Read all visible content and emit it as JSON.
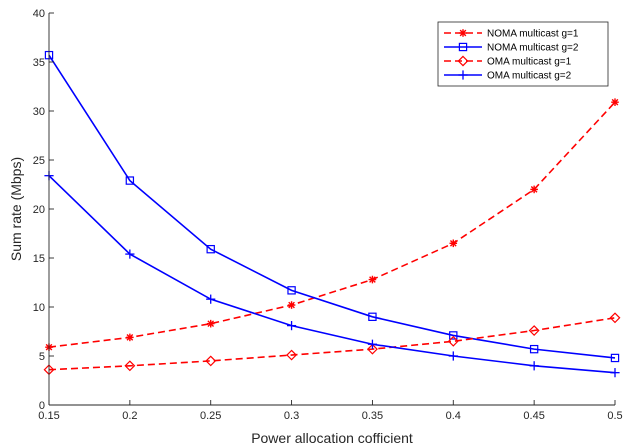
{
  "chart_data": {
    "type": "line",
    "title": "",
    "xlabel": "Power allocation cofficient",
    "ylabel": "Sum rate (Mbps)",
    "xlim": [
      0.15,
      0.5
    ],
    "ylim": [
      0,
      40
    ],
    "xticks": [
      0.15,
      0.2,
      0.25,
      0.3,
      0.35,
      0.4,
      0.45,
      0.5
    ],
    "xtick_labels": [
      "0.15",
      "0.2",
      "0.25",
      "0.3",
      "0.35",
      "0.4",
      "0.45",
      "0.5"
    ],
    "yticks": [
      0,
      5,
      10,
      15,
      20,
      25,
      30,
      35,
      40
    ],
    "ytick_labels": [
      "0",
      "5",
      "10",
      "15",
      "20",
      "25",
      "30",
      "35",
      "40"
    ],
    "grid": false,
    "legend_position": "top-right",
    "x": [
      0.15,
      0.2,
      0.25,
      0.3,
      0.35,
      0.4,
      0.45,
      0.5
    ],
    "series": [
      {
        "name": "NOMA multicast g=1",
        "color": "#ff0000",
        "dash": "dashed",
        "marker": "asterisk",
        "values": [
          5.9,
          6.9,
          8.3,
          10.2,
          12.8,
          16.5,
          22.0,
          30.9
        ]
      },
      {
        "name": "NOMA multicast g=2",
        "color": "#0000ff",
        "dash": "solid",
        "marker": "square",
        "values": [
          35.7,
          22.9,
          15.9,
          11.7,
          9.0,
          7.1,
          5.7,
          4.8
        ]
      },
      {
        "name": "OMA multicast g=1",
        "color": "#ff0000",
        "dash": "dashed",
        "marker": "diamond",
        "values": [
          3.6,
          4.0,
          4.5,
          5.1,
          5.7,
          6.5,
          7.6,
          8.9
        ]
      },
      {
        "name": "OMA multicast g=2",
        "color": "#0000ff",
        "dash": "solid",
        "marker": "plus",
        "values": [
          23.4,
          15.4,
          10.8,
          8.1,
          6.2,
          5.0,
          4.0,
          3.3
        ]
      }
    ]
  }
}
